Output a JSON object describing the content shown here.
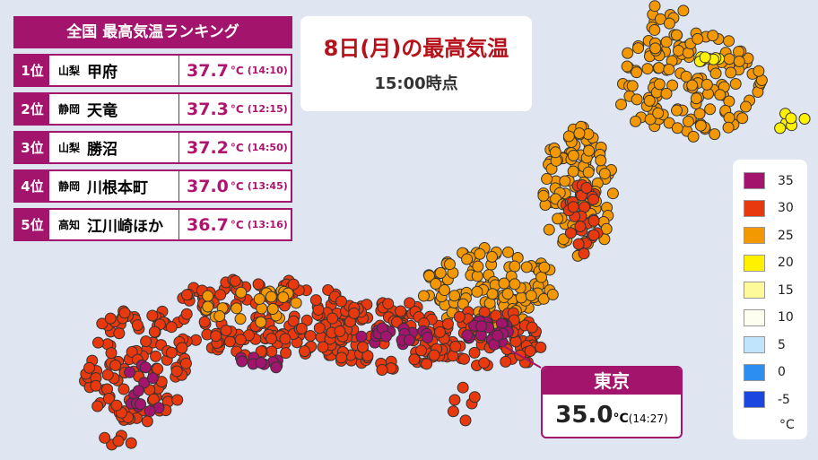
{
  "ranking": {
    "title": "全国 最高気温ランキング",
    "rows": [
      {
        "rank": "1位",
        "pref": "山梨",
        "city": "甲府",
        "temp": "37.7",
        "unit": "°C",
        "time": "(14:10)"
      },
      {
        "rank": "2位",
        "pref": "静岡",
        "city": "天竜",
        "temp": "37.3",
        "unit": "°C",
        "time": "(12:15)"
      },
      {
        "rank": "3位",
        "pref": "山梨",
        "city": "勝沼",
        "temp": "37.2",
        "unit": "°C",
        "time": "(14:50)"
      },
      {
        "rank": "4位",
        "pref": "静岡",
        "city": "川根本町",
        "temp": "37.0",
        "unit": "°C",
        "time": "(13:45)"
      },
      {
        "rank": "5位",
        "pref": "高知",
        "city": "江川崎ほか",
        "temp": "36.7",
        "unit": "°C",
        "time": "(13:16)"
      }
    ]
  },
  "header": {
    "title": "8日(月)の最高気温",
    "subtitle": "15:00時点"
  },
  "callout": {
    "city": "東京",
    "temp": "35.0",
    "unit": "°C",
    "time": "(14:27)"
  },
  "legend": {
    "items": [
      {
        "label": "35",
        "color": "#a3156d"
      },
      {
        "label": "30",
        "color": "#e8380d"
      },
      {
        "label": "25",
        "color": "#f39800"
      },
      {
        "label": "20",
        "color": "#fff100"
      },
      {
        "label": "15",
        "color": "#fffa99"
      },
      {
        "label": "10",
        "color": "#fdfdf0"
      },
      {
        "label": "5",
        "color": "#bfe4fb"
      },
      {
        "label": "0",
        "color": "#2b8ef0"
      },
      {
        "label": "-5",
        "color": "#1b46e0"
      }
    ],
    "unit": "°C"
  }
}
